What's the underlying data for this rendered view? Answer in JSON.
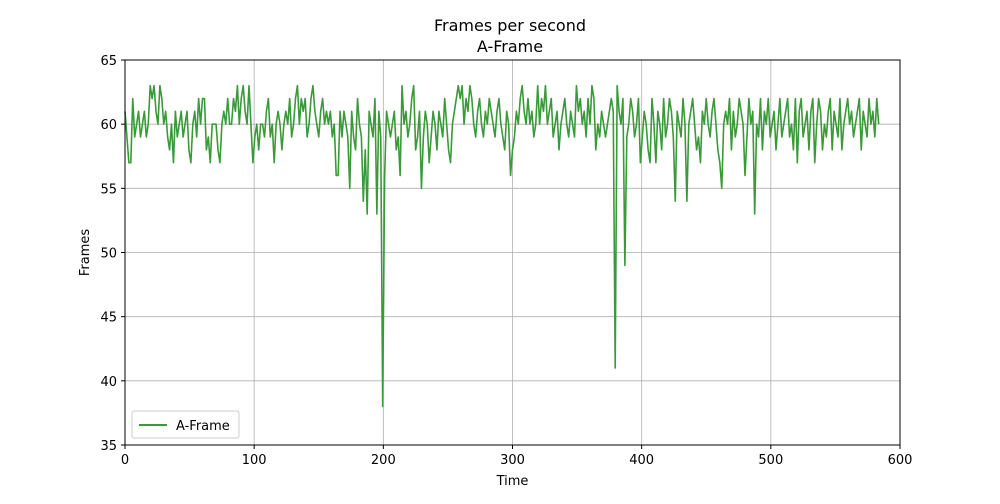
{
  "chart_data": {
    "type": "line",
    "title": "Frames per second",
    "subtitle": "A-Frame",
    "xlabel": "Time",
    "ylabel": "Frames",
    "xlim": [
      0,
      600
    ],
    "ylim": [
      35,
      65
    ],
    "x_ticks": [
      0,
      100,
      200,
      300,
      400,
      500,
      600
    ],
    "y_ticks": [
      35,
      40,
      45,
      50,
      55,
      60,
      65
    ],
    "grid": true,
    "legend": {
      "position": "lower-left",
      "entries": [
        "A-Frame"
      ]
    },
    "series": [
      {
        "name": "A-Frame",
        "color": "#3a9a3a",
        "x_start": 0,
        "x_step": 1.5,
        "values": [
          61,
          59,
          57,
          57,
          62,
          59,
          60,
          61,
          59,
          60,
          61,
          59,
          60,
          63,
          62,
          63,
          61,
          60,
          63,
          62,
          60,
          61,
          59,
          58,
          60,
          57,
          61,
          59,
          60,
          61,
          59,
          60,
          61,
          58,
          57,
          60,
          61,
          59,
          62,
          60,
          62,
          62,
          58,
          59,
          57,
          60,
          60,
          60,
          58,
          57,
          60,
          61,
          60,
          62,
          60,
          60,
          62,
          61,
          63,
          60,
          62,
          63,
          61,
          60,
          63,
          60,
          57,
          59,
          60,
          58,
          60,
          60,
          59,
          61,
          62,
          59,
          60,
          57,
          60,
          61,
          60,
          58,
          60,
          61,
          60,
          62,
          59,
          60,
          62,
          63,
          60,
          62,
          61,
          62,
          59,
          60,
          62,
          63,
          61,
          60,
          59,
          61,
          62,
          60,
          61,
          60,
          61,
          59,
          60,
          56,
          56,
          61,
          59,
          61,
          60,
          59,
          55,
          61,
          59,
          58,
          62,
          60,
          59,
          54,
          58,
          53,
          61,
          60,
          59,
          62,
          53,
          61,
          59,
          38,
          56,
          61,
          60,
          59,
          60,
          61,
          58,
          59,
          56,
          63,
          60,
          61,
          59,
          60,
          62,
          63,
          58,
          59,
          61,
          55,
          59,
          61,
          60,
          57,
          59,
          61,
          60,
          58,
          61,
          60,
          59,
          62,
          60,
          58,
          57,
          60,
          61,
          62,
          63,
          62,
          63,
          60,
          62,
          61,
          63,
          62,
          60,
          59,
          61,
          62,
          60,
          59,
          61,
          60,
          62,
          61,
          60,
          59,
          61,
          62,
          60,
          59,
          58,
          61,
          60,
          56,
          58,
          59,
          61,
          60,
          62,
          63,
          61,
          60,
          62,
          60,
          61,
          59,
          60,
          63,
          60,
          62,
          61,
          63,
          60,
          61,
          62,
          59,
          60,
          61,
          58,
          60,
          61,
          62,
          60,
          59,
          61,
          60,
          59,
          63,
          61,
          62,
          60,
          61,
          59,
          62,
          60,
          63,
          62,
          58,
          60,
          59,
          61,
          60,
          59,
          60,
          61,
          62,
          61,
          41,
          63,
          61,
          60,
          62,
          49,
          59,
          60,
          62,
          61,
          59,
          60,
          62,
          57,
          59,
          61,
          60,
          58,
          57,
          62,
          60,
          57,
          61,
          60,
          58,
          62,
          59,
          60,
          62,
          61,
          59,
          54,
          61,
          60,
          59,
          62,
          60,
          54,
          60,
          61,
          62,
          60,
          58,
          59,
          57,
          61,
          60,
          62,
          60,
          59,
          61,
          62,
          60,
          58,
          57,
          55,
          60,
          61,
          60,
          62,
          58,
          61,
          59,
          60,
          62,
          61,
          60,
          56,
          59,
          62,
          60,
          61,
          53,
          60,
          59,
          62,
          58,
          61,
          60,
          62,
          59,
          60,
          61,
          58,
          60,
          62,
          59,
          60,
          61,
          62,
          59,
          60,
          58,
          62,
          57,
          61,
          62,
          59,
          60,
          61,
          58,
          61,
          62,
          57,
          60,
          62,
          61,
          58,
          60,
          59,
          61,
          62,
          58,
          61,
          60,
          59,
          62,
          58,
          60,
          61,
          62,
          60,
          61,
          59,
          60,
          61,
          62,
          58,
          61,
          60,
          59,
          62,
          60,
          61,
          59,
          62,
          60
        ]
      }
    ]
  }
}
